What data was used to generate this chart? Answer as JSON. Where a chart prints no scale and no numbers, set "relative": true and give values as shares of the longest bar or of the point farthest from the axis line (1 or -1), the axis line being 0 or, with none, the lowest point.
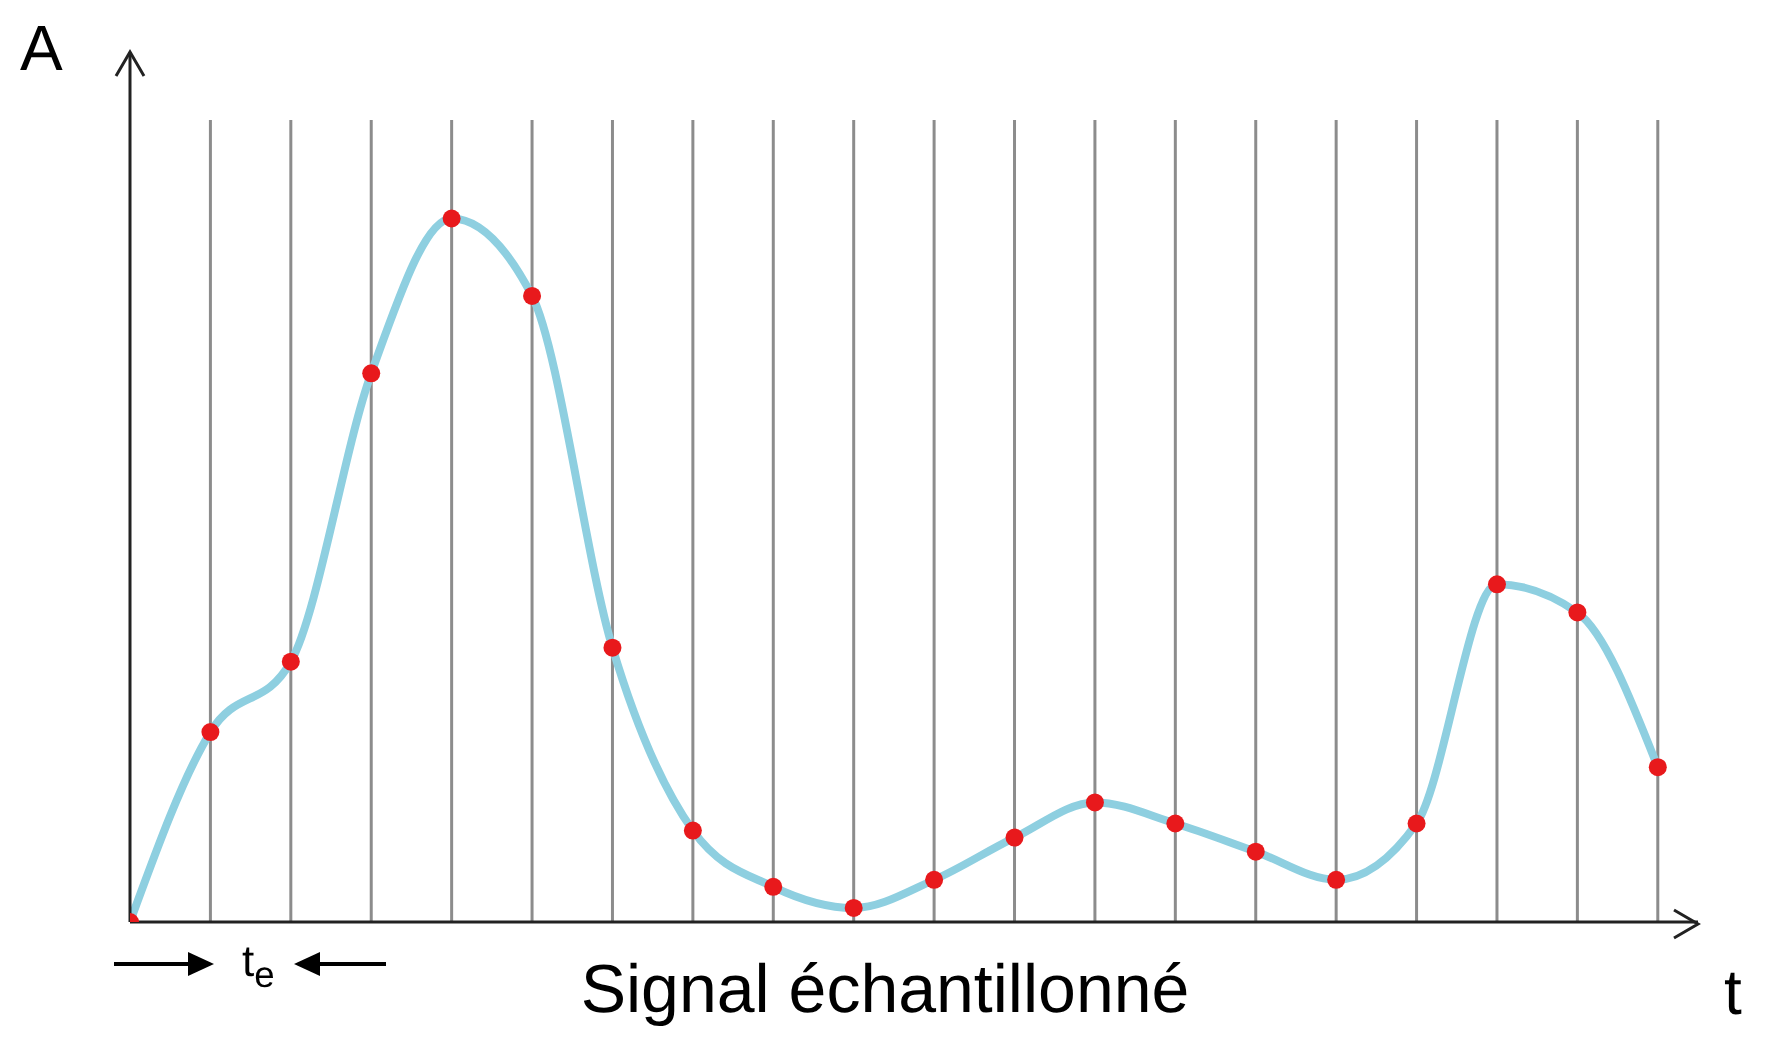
{
  "chart_data": {
    "type": "line",
    "title": "Signal échantillonné",
    "xlabel": "t",
    "ylabel": "A",
    "annotations": [
      "t$_{e}$"
    ],
    "relative": true,
    "categories": [
      null,
      null,
      null,
      null,
      null,
      null,
      null,
      null,
      null,
      null,
      null,
      null,
      null,
      null,
      null,
      null,
      null,
      null,
      null,
      null
    ],
    "grid": "x",
    "line_style": "solid",
    "marker": "circle",
    "series": [
      {
        "color": "#8ecfe0",
        "colors": [
          "#e8191c",
          "#e8191c",
          "#e8191c",
          "#e8191c",
          "#e8191c",
          "#e8191c",
          "#e8191c",
          "#e8191c",
          "#e8191c",
          "#e8191c",
          "#e8191c",
          "#e8191c",
          "#e8191c",
          "#e8191c",
          "#e8191c",
          "#e8191c",
          "#e8191c",
          "#e8191c",
          "#e8191c",
          "#e8191c"
        ],
        "values": [
          0,
          0.27,
          0.37,
          0.78,
          1,
          0.89,
          0.39,
          0.13,
          0.05,
          0.02,
          0.06,
          0.12,
          0.17,
          0.14,
          0.1,
          0.06,
          0.14,
          0.48,
          0.44,
          0.22
        ]
      }
    ]
  }
}
